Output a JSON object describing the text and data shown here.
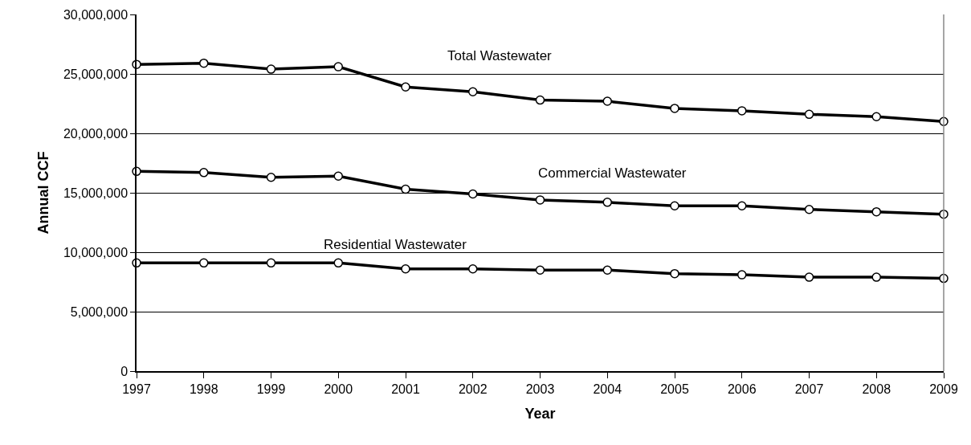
{
  "chart_data": {
    "type": "line",
    "xlabel": "Year",
    "ylabel": "Annual CCF",
    "x": [
      1997,
      1998,
      1999,
      2000,
      2001,
      2002,
      2003,
      2004,
      2005,
      2006,
      2007,
      2008,
      2009
    ],
    "series": [
      {
        "name": "Total Wastewater",
        "color": "#000000",
        "values": [
          25800000,
          25900000,
          25400000,
          25600000,
          23900000,
          23500000,
          22800000,
          22700000,
          22100000,
          21900000,
          21600000,
          21400000,
          21000000
        ]
      },
      {
        "name": "Commercial Wastewater",
        "color": "#000000",
        "values": [
          16800000,
          16700000,
          16300000,
          16400000,
          15300000,
          14900000,
          14400000,
          14200000,
          13900000,
          13900000,
          13600000,
          13400000,
          13200000
        ]
      },
      {
        "name": "Residential Wastewater",
        "color": "#000000",
        "values": [
          9100000,
          9100000,
          9100000,
          9100000,
          8600000,
          8600000,
          8500000,
          8500000,
          8200000,
          8100000,
          7900000,
          7900000,
          7800000
        ]
      }
    ],
    "xlim": [
      1997,
      2009
    ],
    "xticks": [
      1997,
      1998,
      1999,
      2000,
      2001,
      2002,
      2003,
      2004,
      2005,
      2006,
      2007,
      2008,
      2009
    ],
    "ylim": [
      0,
      30000000
    ],
    "yticks": [
      {
        "value": 0,
        "label": "0"
      },
      {
        "value": 5000000,
        "label": "5,000,000"
      },
      {
        "value": 10000000,
        "label": "10,000,000"
      },
      {
        "value": 15000000,
        "label": "15,000,000"
      },
      {
        "value": 20000000,
        "label": "20,000,000"
      },
      {
        "value": 25000000,
        "label": "25,000,000"
      },
      {
        "value": 30000000,
        "label": "30,000,000"
      }
    ],
    "grid": "y",
    "legend": false,
    "marker": "circle",
    "line_style": "solid"
  }
}
